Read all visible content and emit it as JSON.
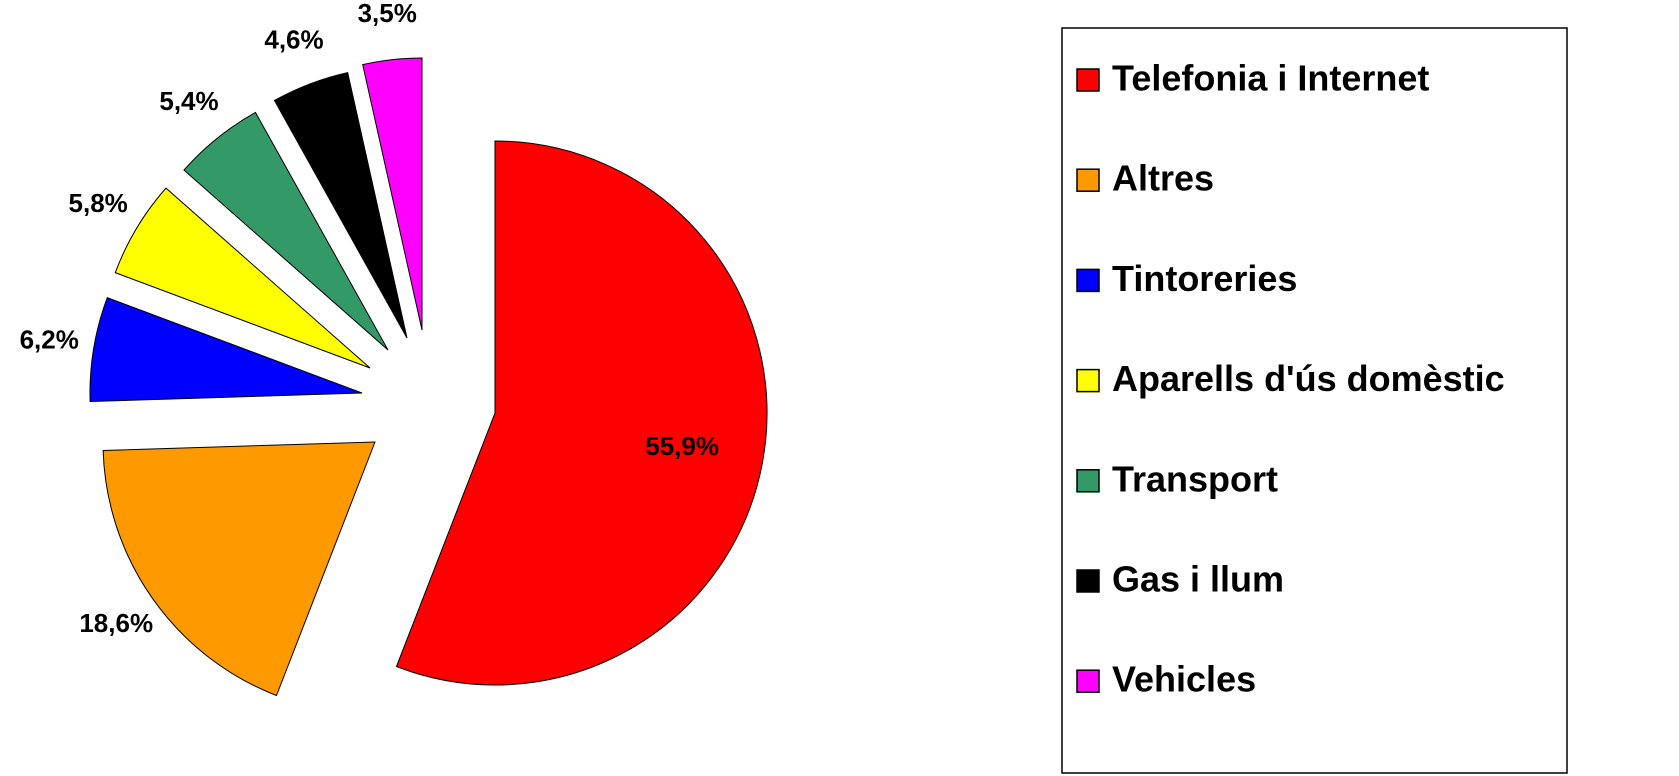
{
  "chart_data": {
    "type": "pie",
    "categories": [
      "Telefonia i Internet",
      "Altres",
      "Tintoreries",
      "Aparells d'ús domèstic",
      "Transport",
      "Gas i llum",
      "Vehicles"
    ],
    "values": [
      55.9,
      18.6,
      6.2,
      5.8,
      5.4,
      4.6,
      3.5
    ],
    "value_labels": [
      "55,9%",
      "18,6%",
      "6,2%",
      "5,8%",
      "5,4%",
      "4,6%",
      "3,5%"
    ],
    "colors": [
      "#ff0000",
      "#ff9900",
      "#0000ff",
      "#ffff00",
      "#339966",
      "#000000",
      "#ff00ff"
    ],
    "legend": "right"
  }
}
